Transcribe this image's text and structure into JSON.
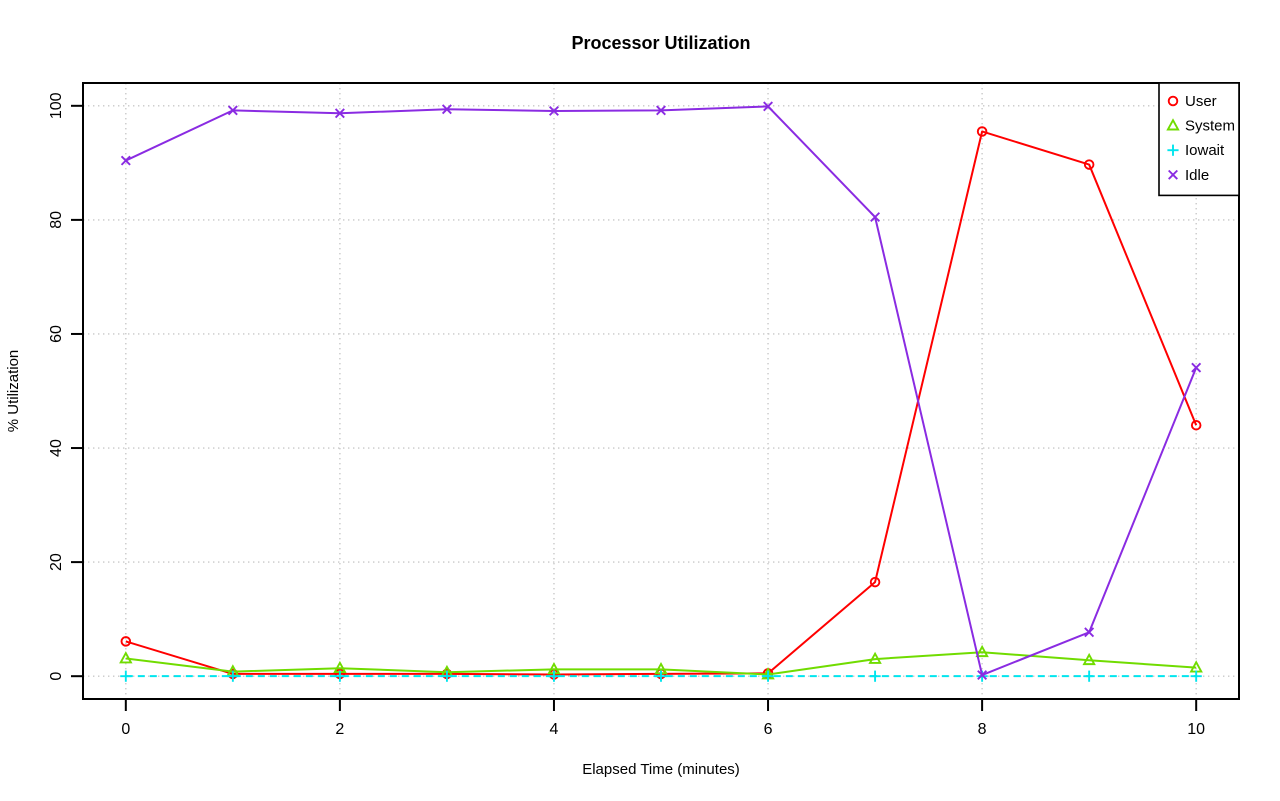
{
  "figure": {
    "background": "#ffffff",
    "axis_color": "#000000",
    "grid_color": "#c8c8c8"
  },
  "chart_data": {
    "type": "line",
    "title": "Processor Utilization",
    "xlabel": "Elapsed Time (minutes)",
    "ylabel": "% Utilization",
    "x": [
      0,
      1,
      2,
      3,
      4,
      5,
      6,
      7,
      8,
      9,
      10
    ],
    "xlim": [
      -0.4,
      10.4
    ],
    "ylim": [
      -4,
      104
    ],
    "xticks": [
      0,
      2,
      4,
      6,
      8,
      10
    ],
    "yticks": [
      0,
      20,
      40,
      60,
      80,
      100
    ],
    "grid": true,
    "grid_style": "dotted",
    "legend_position": "topright",
    "legend_entries": [
      "User",
      "System",
      "Iowait",
      "Idle"
    ],
    "series": [
      {
        "name": "User",
        "color": "#ff0000",
        "marker": "circle",
        "linestyle": "solid",
        "values": [
          6.1,
          0.4,
          0.4,
          0.4,
          0.3,
          0.4,
          0.5,
          16.5,
          95.5,
          89.7,
          44.0
        ]
      },
      {
        "name": "System",
        "color": "#70dc00",
        "marker": "triangle",
        "linestyle": "solid",
        "values": [
          3.1,
          0.8,
          1.4,
          0.7,
          1.2,
          1.2,
          0.3,
          3.0,
          4.2,
          2.8,
          1.5
        ]
      },
      {
        "name": "Iowait",
        "color": "#00e5ee",
        "marker": "plus",
        "linestyle": "dashed",
        "values": [
          0,
          0,
          0,
          0,
          0,
          0,
          0,
          0,
          0,
          0,
          0
        ]
      },
      {
        "name": "Idle",
        "color": "#8a2be2",
        "marker": "x",
        "linestyle": "solid",
        "values": [
          90.4,
          99.2,
          98.7,
          99.4,
          99.1,
          99.2,
          99.9,
          80.5,
          0.2,
          7.7,
          54.1
        ]
      }
    ]
  }
}
